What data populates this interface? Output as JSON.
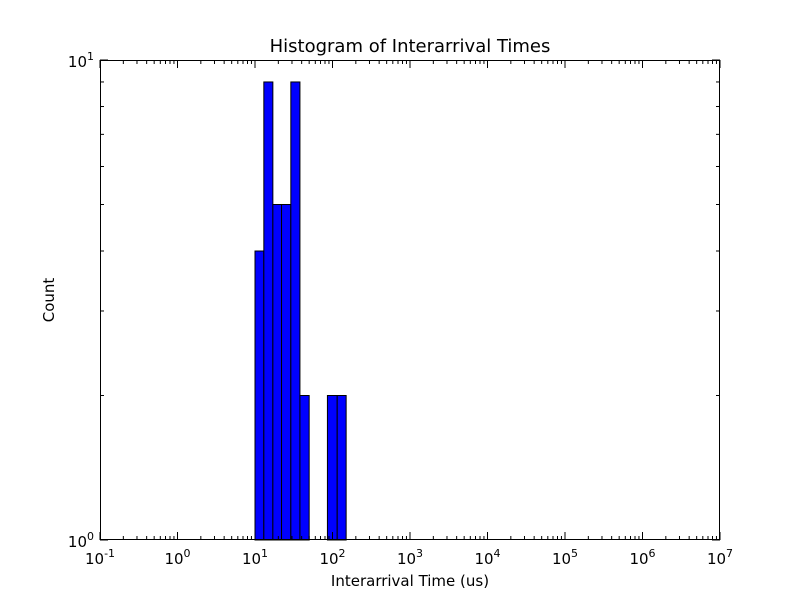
{
  "chart_data": {
    "type": "bar",
    "title": "Histogram of Interarrival Times",
    "xlabel": "Interarrival Time (us)",
    "ylabel": "Count",
    "xscale": "log",
    "yscale": "log",
    "xlim": [
      0.1,
      10000000
    ],
    "ylim": [
      1,
      10
    ],
    "x_tick_labels": [
      {
        "base": "10",
        "exp": "-1"
      },
      {
        "base": "10",
        "exp": "0"
      },
      {
        "base": "10",
        "exp": "1"
      },
      {
        "base": "10",
        "exp": "2"
      },
      {
        "base": "10",
        "exp": "3"
      },
      {
        "base": "10",
        "exp": "4"
      },
      {
        "base": "10",
        "exp": "5"
      },
      {
        "base": "10",
        "exp": "6"
      },
      {
        "base": "10",
        "exp": "7"
      }
    ],
    "y_tick_labels": [
      {
        "base": "10",
        "exp": "0"
      },
      {
        "base": "10",
        "exp": "1"
      }
    ],
    "bar_color": "#0000ff",
    "edge_color": "#000000",
    "grid": false,
    "bins": [
      {
        "left": 10,
        "right": 13,
        "value": 4
      },
      {
        "left": 13,
        "right": 17,
        "value": 9
      },
      {
        "left": 17,
        "right": 22,
        "value": 5
      },
      {
        "left": 22,
        "right": 29,
        "value": 5
      },
      {
        "left": 29,
        "right": 38,
        "value": 9
      },
      {
        "left": 38,
        "right": 50,
        "value": 2
      },
      {
        "left": 86,
        "right": 115,
        "value": 2
      },
      {
        "left": 115,
        "right": 150,
        "value": 2
      }
    ]
  }
}
